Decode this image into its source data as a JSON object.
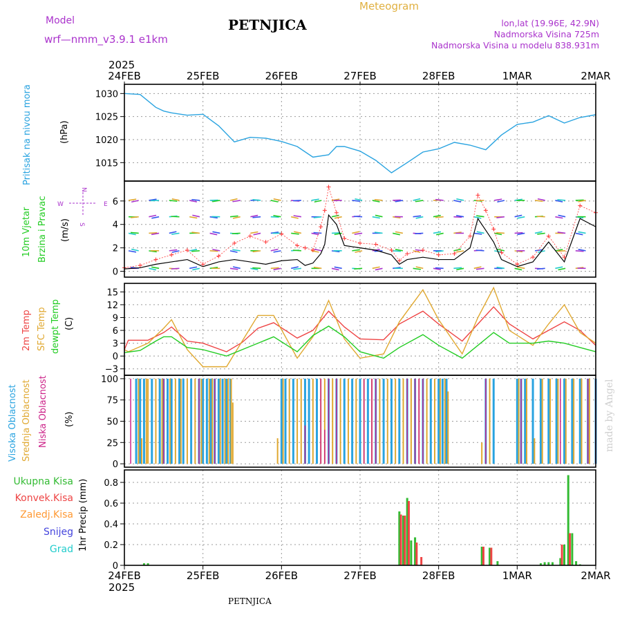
{
  "header": {
    "model_label": "Model",
    "model_name": "wrf—nmm_v3.9.1  e1km",
    "station": "PETNJICA",
    "meteogram_label": "Meteogram",
    "lonlat": "lon,lat (19.96E, 42.9N)",
    "altitude": "Nadmorska Visina 725m",
    "model_altitude": "Nadmorska Visina u modelu 838.931m",
    "footer_station": "PETNJICA",
    "watermark": "made by Angel"
  },
  "time_axis": {
    "year": "2025",
    "labels": [
      "24FEB",
      "25FEB",
      "26FEB",
      "27FEB",
      "28FEB",
      "1MAR",
      "2MAR"
    ]
  },
  "colors": {
    "pressure": "#29a3e0",
    "wind_line": "#000000",
    "gust": "#ff3333",
    "t2m": "#ee4444",
    "tsfc": "#e0a830",
    "dewpt": "#22cc22",
    "cloud_high": "#29a3e0",
    "cloud_mid": "#e0a830",
    "cloud_low": "#cc2288",
    "precip_total": "#33bb33",
    "precip_conv": "#ee4444",
    "precip_frozen": "#ff9933",
    "snow": "#4444dd",
    "hail": "#22cccc",
    "title_gold": "#e0b040",
    "purple": "#aa33cc"
  },
  "chart_data": [
    {
      "type": "line",
      "panel": "pressure",
      "ylabel": "Pritisak na nivou mora",
      "unit": "(hPa)",
      "yticks": [
        1015,
        1020,
        1025,
        1030
      ],
      "ylim": [
        1011,
        1032
      ],
      "series": [
        {
          "x": [
            0,
            0.2,
            0.4,
            0.5,
            0.6,
            0.8,
            1.0,
            1.2,
            1.4,
            1.6,
            1.8,
            2.0,
            2.2,
            2.4,
            2.6,
            2.7,
            2.8,
            3.0,
            3.2,
            3.4,
            3.6,
            3.8,
            4.0,
            4.2,
            4.4,
            4.6,
            4.8,
            5.0,
            5.2,
            5.4,
            5.6,
            5.8,
            6.0
          ],
          "y": [
            1030,
            1029.8,
            1027,
            1026.2,
            1025.8,
            1025.3,
            1025.5,
            1023,
            1019.5,
            1020.5,
            1020.3,
            1019.6,
            1018.5,
            1016.2,
            1016.7,
            1018.5,
            1018.5,
            1017.5,
            1015.5,
            1012.8,
            1015,
            1017.3,
            1018,
            1019.4,
            1018.8,
            1017.8,
            1021,
            1023.3,
            1023.8,
            1025.2,
            1023.6,
            1024.8,
            1025.4
          ]
        }
      ]
    },
    {
      "type": "line",
      "panel": "wind",
      "ylabel": "10m Vjetar Brzina i Pravac",
      "unit": "(m/s)",
      "compass": [
        "N",
        "W",
        "E",
        "S"
      ],
      "yticks": [
        0,
        2,
        4,
        6
      ],
      "ylim": [
        -0.5,
        7.7
      ],
      "series": [
        {
          "name": "speed",
          "x": [
            0,
            0.2,
            0.4,
            0.6,
            0.8,
            1.0,
            1.2,
            1.4,
            1.6,
            1.8,
            2.0,
            2.2,
            2.3,
            2.4,
            2.5,
            2.55,
            2.6,
            2.7,
            2.8,
            3.0,
            3.2,
            3.4,
            3.5,
            3.6,
            3.8,
            4.0,
            4.2,
            4.4,
            4.5,
            4.6,
            4.7,
            4.8,
            5.0,
            5.2,
            5.4,
            5.6,
            5.8,
            6.0
          ],
          "y": [
            0.2,
            0.3,
            0.6,
            0.8,
            1.0,
            0.4,
            0.8,
            1.0,
            0.8,
            0.6,
            0.9,
            1.0,
            0.5,
            0.7,
            1.5,
            2.3,
            4.8,
            4.0,
            2.2,
            2.0,
            1.8,
            1.4,
            0.6,
            1.0,
            1.2,
            1.0,
            1.0,
            2.0,
            4.5,
            3.5,
            2.5,
            1.0,
            0.4,
            0.8,
            2.5,
            0.8,
            4.5,
            3.8
          ]
        },
        {
          "name": "gust",
          "x": [
            0,
            0.2,
            0.4,
            0.6,
            0.8,
            1.0,
            1.2,
            1.4,
            1.6,
            1.8,
            2.0,
            2.2,
            2.3,
            2.4,
            2.5,
            2.55,
            2.6,
            2.7,
            2.8,
            3.0,
            3.2,
            3.4,
            3.5,
            3.6,
            3.8,
            4.0,
            4.2,
            4.4,
            4.5,
            4.6,
            4.7,
            4.8,
            5.0,
            5.2,
            5.4,
            5.6,
            5.8,
            6.0
          ],
          "y": [
            0.3,
            0.5,
            1.0,
            1.4,
            1.8,
            0.6,
            1.3,
            2.4,
            3.0,
            2.5,
            3.2,
            2.2,
            2.0,
            1.8,
            3.8,
            5.2,
            7.2,
            5.0,
            2.8,
            2.4,
            2.3,
            1.8,
            0.9,
            1.5,
            1.8,
            1.4,
            1.5,
            3.0,
            6.5,
            5.2,
            3.6,
            1.6,
            0.6,
            1.2,
            3.0,
            1.2,
            5.6,
            5.0
          ]
        }
      ]
    },
    {
      "type": "line",
      "panel": "temperature",
      "ylabel": [
        "2m Temp",
        "SFC Temp",
        "dewpt Temp"
      ],
      "unit": "(C)",
      "yticks": [
        -3,
        0,
        3,
        6,
        9,
        12,
        15
      ],
      "ylim": [
        -4.5,
        17
      ],
      "series": [
        {
          "name": "2m Temp",
          "x": [
            0,
            0.05,
            0.3,
            0.5,
            0.6,
            0.8,
            1.0,
            1.3,
            1.5,
            1.7,
            1.9,
            2.2,
            2.4,
            2.6,
            2.8,
            3.0,
            3.3,
            3.5,
            3.8,
            4.0,
            4.3,
            4.5,
            4.7,
            4.9,
            5.2,
            5.4,
            5.6,
            5.8,
            6.0
          ],
          "y": [
            1.5,
            3.7,
            3.7,
            5.5,
            6.8,
            3.5,
            3.0,
            1.0,
            3.2,
            6.5,
            7.8,
            4.2,
            6.0,
            10.5,
            6.8,
            4.0,
            3.8,
            7.5,
            10.5,
            7.5,
            3.5,
            7.5,
            11.5,
            7.5,
            4.0,
            6.0,
            8.0,
            6.0,
            2.5
          ]
        },
        {
          "name": "SFC Temp",
          "x": [
            0,
            0.05,
            0.3,
            0.5,
            0.6,
            0.8,
            1.0,
            1.1,
            1.3,
            1.5,
            1.7,
            1.9,
            2.2,
            2.4,
            2.6,
            2.8,
            3.0,
            3.3,
            3.5,
            3.8,
            4.0,
            4.3,
            4.5,
            4.7,
            4.9,
            5.2,
            5.4,
            5.6,
            5.8,
            6.0
          ],
          "y": [
            1.5,
            1.0,
            3.0,
            6.5,
            8.5,
            1.5,
            -2.5,
            -2.5,
            -2.5,
            3.5,
            9.5,
            9.5,
            -0.5,
            4.5,
            13.0,
            4.0,
            -0.5,
            0.5,
            8.0,
            15.5,
            8.5,
            0.5,
            9.0,
            16.0,
            6.0,
            2.5,
            7.5,
            12.0,
            5.5,
            3.0
          ]
        },
        {
          "name": "dewpt Temp",
          "x": [
            0,
            0.2,
            0.4,
            0.5,
            0.6,
            0.8,
            1.0,
            1.3,
            1.5,
            1.7,
            1.9,
            2.2,
            2.4,
            2.6,
            2.8,
            3.0,
            3.3,
            3.5,
            3.8,
            4.0,
            4.3,
            4.5,
            4.7,
            4.9,
            5.2,
            5.4,
            5.6,
            5.8,
            6.0
          ],
          "y": [
            0.8,
            1.3,
            3.5,
            4.5,
            4.5,
            2.0,
            1.5,
            0.0,
            1.5,
            3.0,
            4.5,
            1.0,
            4.8,
            7.0,
            4.5,
            1.0,
            -0.5,
            2.0,
            5.0,
            2.5,
            -0.5,
            2.5,
            5.5,
            3.0,
            3.0,
            3.5,
            3.0,
            2.0,
            1.0
          ]
        }
      ]
    },
    {
      "type": "bar",
      "panel": "clouds",
      "ylabel": [
        "Visoka Oblacnost",
        "Srednja Oblacnost",
        "Niska Oblacnost"
      ],
      "unit": "(%)",
      "yticks": [
        0,
        25,
        50,
        75,
        100
      ],
      "ylim": [
        -4,
        104
      ],
      "series": [
        {
          "name": "Visoka Oblacnost",
          "x": [
            0.15,
            0.2,
            0.25,
            0.35,
            0.45,
            0.5,
            0.55,
            0.6,
            0.7,
            0.75,
            0.85,
            0.95,
            1.0,
            1.05,
            1.1,
            1.15,
            1.2,
            1.25,
            1.3,
            1.35,
            2.0,
            2.05,
            2.15,
            2.3,
            2.35,
            2.45,
            2.6,
            2.7,
            2.8,
            2.9,
            3.0,
            3.1,
            3.2,
            3.3,
            3.4,
            3.5,
            3.6,
            3.7,
            3.8,
            3.9,
            4.0,
            4.05,
            4.1,
            4.6,
            4.7,
            5.0,
            5.05,
            5.1,
            5.2,
            5.3,
            5.4,
            5.5,
            5.6,
            5.7,
            5.8,
            5.9,
            6.0
          ],
          "values": [
            100,
            100,
            100,
            100,
            100,
            100,
            100,
            100,
            100,
            100,
            100,
            100,
            100,
            100,
            100,
            100,
            100,
            100,
            100,
            100,
            100,
            100,
            100,
            100,
            100,
            100,
            100,
            100,
            100,
            100,
            100,
            100,
            100,
            100,
            100,
            100,
            100,
            100,
            100,
            100,
            100,
            100,
            100,
            100,
            100,
            100,
            100,
            100,
            100,
            100,
            100,
            100,
            100,
            100,
            100,
            100,
            100
          ]
        },
        {
          "name": "Srednja Oblacnost",
          "x": [
            0.18,
            0.22,
            0.28,
            0.3,
            0.4,
            0.48,
            0.58,
            0.65,
            0.72,
            0.8,
            0.9,
            0.98,
            1.08,
            1.12,
            1.22,
            1.28,
            1.32,
            1.36,
            1.38,
            1.95,
            2.02,
            2.1,
            2.2,
            2.25,
            2.4,
            2.5,
            2.55,
            2.65,
            2.75,
            2.85,
            2.95,
            3.05,
            3.15,
            3.25,
            3.35,
            3.45,
            3.55,
            3.65,
            3.75,
            3.85,
            3.95,
            4.02,
            4.08,
            4.12,
            4.55,
            4.65,
            5.02,
            5.12,
            5.22,
            5.32,
            5.42,
            5.52,
            5.62,
            5.72,
            5.82,
            5.92
          ],
          "values": [
            100,
            30,
            100,
            100,
            100,
            100,
            100,
            100,
            100,
            100,
            100,
            100,
            100,
            100,
            100,
            100,
            100,
            100,
            72,
            30,
            100,
            100,
            100,
            100,
            100,
            100,
            100,
            100,
            100,
            100,
            100,
            100,
            100,
            100,
            100,
            100,
            100,
            100,
            100,
            100,
            100,
            100,
            100,
            85,
            25,
            100,
            100,
            100,
            30,
            100,
            100,
            100,
            100,
            100,
            100,
            100
          ]
        },
        {
          "name": "Niska Oblacnost",
          "x": [
            0.08,
            0.5,
            0.95,
            1.15,
            2.3,
            2.5,
            2.55,
            2.6,
            2.7,
            3.05,
            3.15,
            3.2,
            3.6,
            3.7,
            3.75,
            3.8,
            4.6,
            5.05,
            5.55,
            5.9,
            6.0
          ],
          "values": [
            100,
            100,
            100,
            100,
            45,
            100,
            40,
            100,
            100,
            100,
            100,
            100,
            100,
            100,
            100,
            100,
            100,
            100,
            100,
            100,
            100
          ]
        }
      ]
    },
    {
      "type": "bar",
      "panel": "precipitation",
      "ylabel": "1hr Precip (mm)",
      "legend": [
        "Ukupna Kisa",
        "Konvek.Kisa",
        "Zaledj.Kisa",
        "Snijeg",
        "Grad"
      ],
      "yticks": [
        0,
        0.2,
        0.4,
        0.6,
        0.8
      ],
      "ylim": [
        0,
        0.92
      ],
      "series": [
        {
          "name": "Ukupna Kisa",
          "x": [
            0.25,
            0.3,
            3.5,
            3.55,
            3.6,
            3.65,
            3.7,
            4.55,
            4.65,
            4.75,
            5.3,
            5.35,
            5.4,
            5.45,
            5.55,
            5.6,
            5.65,
            5.7,
            5.75,
            5.8
          ],
          "values": [
            0.02,
            0.02,
            0.52,
            0.48,
            0.65,
            0.24,
            0.27,
            0.18,
            0.17,
            0.04,
            0.02,
            0.03,
            0.03,
            0.03,
            0.07,
            0.2,
            0.87,
            0.31,
            0.04,
            0.01
          ]
        },
        {
          "name": "Konvek.Kisa",
          "x": [
            3.52,
            3.57,
            3.62,
            3.72,
            3.78,
            4.57,
            4.67,
            5.57,
            5.67
          ],
          "values": [
            0.49,
            0.48,
            0.62,
            0.22,
            0.08,
            0.18,
            0.17,
            0.2,
            0.31
          ]
        }
      ]
    }
  ]
}
